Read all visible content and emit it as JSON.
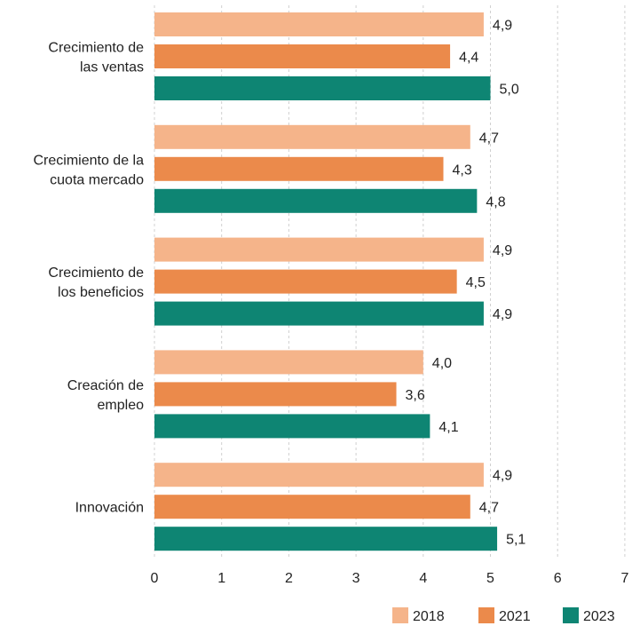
{
  "chart_data": {
    "type": "bar",
    "orientation": "horizontal",
    "categories": [
      [
        "Crecimiento de",
        "las ventas"
      ],
      [
        "Crecimiento de la",
        "cuota mercado"
      ],
      [
        "Crecimiento de",
        "los beneficios"
      ],
      [
        "Creación de",
        "empleo"
      ],
      [
        "Innovación"
      ]
    ],
    "series": [
      {
        "name": "2018",
        "color": "#F5B48A",
        "values": [
          4.9,
          4.7,
          4.9,
          4.0,
          4.9
        ],
        "labels": [
          "4,9",
          "4,7",
          "4,9",
          "4,0",
          "4,9"
        ]
      },
      {
        "name": "2021",
        "color": "#EB8A4B",
        "values": [
          4.4,
          4.3,
          4.5,
          3.6,
          4.7
        ],
        "labels": [
          "4,4",
          "4,3",
          "4,5",
          "3,6",
          "4,7"
        ]
      },
      {
        "name": "2023",
        "color": "#0E8573",
        "values": [
          5.0,
          4.8,
          4.9,
          4.1,
          5.1
        ],
        "labels": [
          "5,0",
          "4,8",
          "4,9",
          "4,1",
          "5,1"
        ]
      }
    ],
    "xlim": [
      0,
      7
    ],
    "xticks": [
      "0",
      "1",
      "2",
      "3",
      "4",
      "5",
      "6",
      "7"
    ],
    "grid": true,
    "legend_position": "bottom-right"
  }
}
